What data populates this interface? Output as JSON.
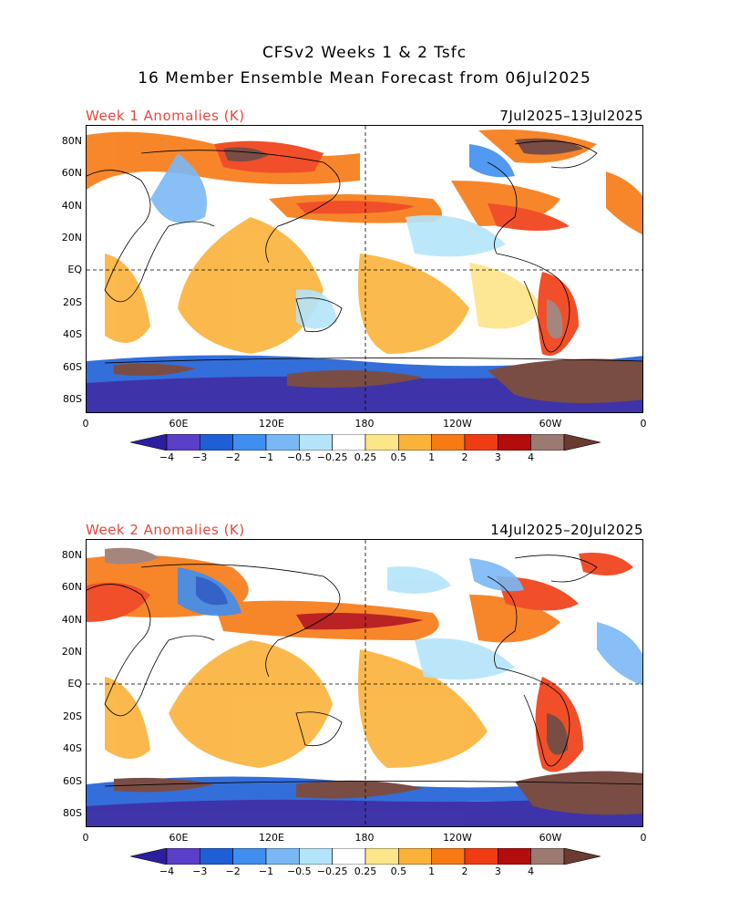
{
  "header": {
    "title_line1": "CFSv2 Weeks 1 & 2 Tsfc",
    "title_line2": "16 Member Ensemble Mean Forecast from 06Jul2025"
  },
  "panels": [
    {
      "left_title": "Week 1 Anomalies (K)",
      "date_range": "7Jul2025–13Jul2025"
    },
    {
      "left_title": "Week 2 Anomalies (K)",
      "date_range": "14Jul2025–20Jul2025"
    }
  ],
  "latitude_labels": [
    "80N",
    "60N",
    "40N",
    "20N",
    "EQ",
    "20S",
    "40S",
    "60S",
    "80S"
  ],
  "longitude_labels": [
    "0",
    "60E",
    "120E",
    "180",
    "120W",
    "60W",
    "0"
  ],
  "colorbar": {
    "labels": [
      "−4",
      "−3",
      "−2",
      "−1",
      "−0.5",
      "−0.25",
      "0.25",
      "0.5",
      "1",
      "2",
      "3",
      "4"
    ],
    "colors": [
      "#2b1ea0",
      "#5a3fc8",
      "#1f5fd6",
      "#3f8ef0",
      "#7ab8f5",
      "#b4e4fa",
      "#ffffff",
      "#fde58a",
      "#fbb23a",
      "#f77a14",
      "#f03c12",
      "#b20c0c",
      "#9c7a72",
      "#6b3a30"
    ]
  },
  "colors": {
    "warm_text": "#e8473c"
  }
}
